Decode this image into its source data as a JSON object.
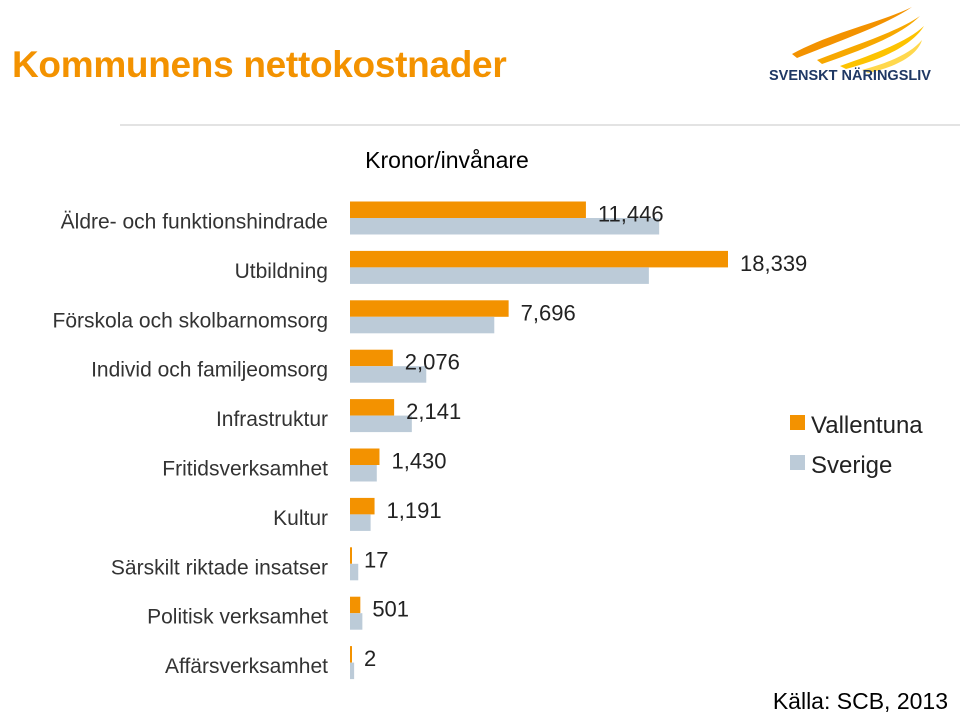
{
  "page": {
    "title": "Kommunens nettokostnader",
    "source": "Källa: SCB, 2013"
  },
  "logo": {
    "text": "SVENSKT NÄRINGSLIV",
    "colors": [
      "#F39200",
      "#FDC300",
      "#1F3864"
    ]
  },
  "colors": {
    "title": "#F39200",
    "vallentuna": "#F39200",
    "sverige": "#BCCBD8"
  },
  "chart_data": {
    "type": "bar",
    "orientation": "horizontal",
    "title": "Kronor/invånare",
    "xlabel": "",
    "ylabel": "",
    "xlim": [
      0,
      20500
    ],
    "grid": false,
    "legend_position": "right",
    "categories": [
      "Äldre- och funktionshindrade",
      "Utbildning",
      "Förskola och skolbarnomsorg",
      "Individ och familjeomsorg",
      "Infrastruktur",
      "Fritidsverksamhet",
      "Kultur",
      "Särskilt riktade insatser",
      "Politisk verksamhet",
      "Affärsverksamhet"
    ],
    "series": [
      {
        "name": "Vallentuna",
        "color": "#F39200",
        "values": [
          11446,
          18339,
          7696,
          2076,
          2141,
          1430,
          1191,
          17,
          501,
          2
        ],
        "labels": [
          "11,446",
          "18,339",
          "7,696",
          "2,076",
          "2,141",
          "1,430",
          "1,191",
          "17",
          "501",
          "2"
        ]
      },
      {
        "name": "Sverige",
        "color": "#BCCBD8",
        "values": [
          15000,
          14500,
          7000,
          3700,
          3000,
          1300,
          1000,
          400,
          600,
          200
        ]
      }
    ]
  }
}
